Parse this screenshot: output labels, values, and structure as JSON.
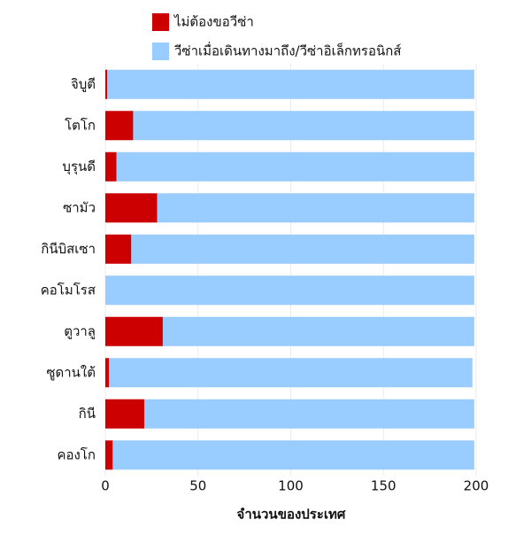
{
  "chart_data": {
    "type": "bar",
    "orientation": "horizontal",
    "stacked": true,
    "x_label": "จำนวนของประเทศ",
    "categories": [
      "จิบูตี",
      "โตโก",
      "บุรุนดี",
      "ซามัว",
      "กินีบิสเซา",
      "คอโมโรส",
      "ตูวาลู",
      "ซูดานใต้",
      "กินี",
      "คองโก"
    ],
    "series": [
      {
        "name": "ไม่ต้องขอวีซ่า",
        "color": "#cc0000",
        "values": [
          1,
          15,
          6,
          28,
          14,
          0,
          31,
          2,
          21,
          4
        ]
      },
      {
        "name": "วีซ่าเมื่อเดินทางมาถึง/วีซ่าอิเล็กทรอนิกส์",
        "color": "#99ccff",
        "values": [
          198,
          184,
          193,
          171,
          185,
          199,
          168,
          196,
          178,
          195
        ]
      }
    ],
    "xlim": [
      0,
      200
    ],
    "xticks": [
      0,
      50,
      100,
      150,
      200
    ],
    "grid": true
  }
}
